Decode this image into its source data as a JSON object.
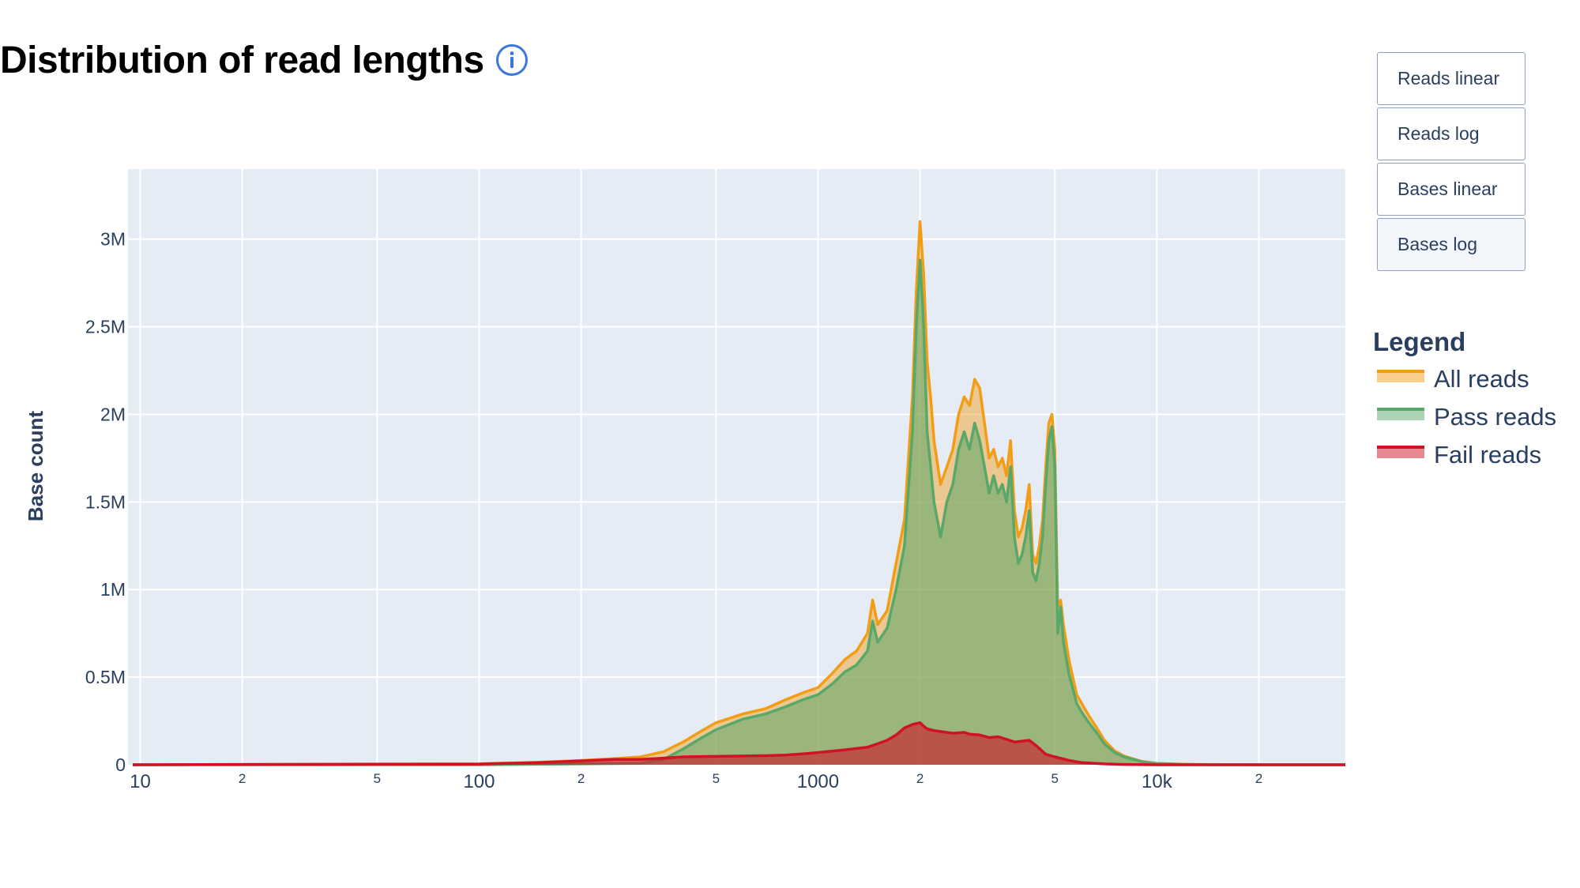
{
  "title": "Distribution of read lengths",
  "buttons": [
    "Reads linear",
    "Reads log",
    "Bases linear",
    "Bases log"
  ],
  "active_button": "Bases log",
  "legend_title": "Legend",
  "colors": {
    "all": "#f29d16",
    "pass": "#59a869",
    "fail": "#cf1327",
    "info": "#3a78d8",
    "plot_bg": "#e5ecf6",
    "grid": "#ffffff"
  },
  "chart_data": {
    "type": "area",
    "title": "Distribution of read lengths",
    "xlabel": "",
    "ylabel": "Base count",
    "x_scale": "log",
    "xlim": [
      9.2,
      36000
    ],
    "ylim": [
      0,
      3400000
    ],
    "grid": true,
    "legend_position": "right",
    "x_major_ticks": [
      {
        "v": 10,
        "label": "10"
      },
      {
        "v": 100,
        "label": "100"
      },
      {
        "v": 1000,
        "label": "1000"
      },
      {
        "v": 10000,
        "label": "10k"
      }
    ],
    "x_minor_ticks": [
      {
        "v": 20,
        "label": "2"
      },
      {
        "v": 50,
        "label": "5"
      },
      {
        "v": 200,
        "label": "2"
      },
      {
        "v": 500,
        "label": "5"
      },
      {
        "v": 2000,
        "label": "2"
      },
      {
        "v": 5000,
        "label": "5"
      },
      {
        "v": 20000,
        "label": "2"
      }
    ],
    "y_ticks": [
      {
        "v": 0,
        "label": "0"
      },
      {
        "v": 500000,
        "label": "0.5M"
      },
      {
        "v": 1000000,
        "label": "1M"
      },
      {
        "v": 1500000,
        "label": "1.5M"
      },
      {
        "v": 2000000,
        "label": "2M"
      },
      {
        "v": 2500000,
        "label": "2.5M"
      },
      {
        "v": 3000000,
        "label": "3M"
      }
    ],
    "series": [
      {
        "name": "All reads",
        "key": "all",
        "points": [
          [
            9.5,
            0
          ],
          [
            20,
            2000
          ],
          [
            50,
            4000
          ],
          [
            100,
            6000
          ],
          [
            150,
            15000
          ],
          [
            200,
            25000
          ],
          [
            250,
            35000
          ],
          [
            300,
            45000
          ],
          [
            350,
            75000
          ],
          [
            400,
            130000
          ],
          [
            450,
            190000
          ],
          [
            500,
            240000
          ],
          [
            600,
            290000
          ],
          [
            700,
            320000
          ],
          [
            800,
            370000
          ],
          [
            900,
            410000
          ],
          [
            1000,
            440000
          ],
          [
            1100,
            520000
          ],
          [
            1200,
            600000
          ],
          [
            1300,
            650000
          ],
          [
            1400,
            750000
          ],
          [
            1450,
            940000
          ],
          [
            1500,
            800000
          ],
          [
            1600,
            880000
          ],
          [
            1700,
            1150000
          ],
          [
            1800,
            1400000
          ],
          [
            1900,
            2100000
          ],
          [
            1950,
            2700000
          ],
          [
            2000,
            3100000
          ],
          [
            2050,
            2800000
          ],
          [
            2100,
            2300000
          ],
          [
            2150,
            2100000
          ],
          [
            2200,
            1850000
          ],
          [
            2300,
            1600000
          ],
          [
            2400,
            1700000
          ],
          [
            2500,
            1800000
          ],
          [
            2600,
            2000000
          ],
          [
            2700,
            2100000
          ],
          [
            2800,
            2050000
          ],
          [
            2900,
            2200000
          ],
          [
            3000,
            2150000
          ],
          [
            3100,
            1950000
          ],
          [
            3200,
            1750000
          ],
          [
            3300,
            1800000
          ],
          [
            3400,
            1700000
          ],
          [
            3500,
            1750000
          ],
          [
            3600,
            1650000
          ],
          [
            3700,
            1850000
          ],
          [
            3800,
            1450000
          ],
          [
            3900,
            1300000
          ],
          [
            4000,
            1350000
          ],
          [
            4100,
            1450000
          ],
          [
            4200,
            1600000
          ],
          [
            4300,
            1200000
          ],
          [
            4400,
            1150000
          ],
          [
            4500,
            1250000
          ],
          [
            4600,
            1400000
          ],
          [
            4700,
            1700000
          ],
          [
            4800,
            1950000
          ],
          [
            4900,
            2000000
          ],
          [
            5000,
            1800000
          ],
          [
            5100,
            900000
          ],
          [
            5200,
            940000
          ],
          [
            5300,
            800000
          ],
          [
            5500,
            600000
          ],
          [
            5800,
            400000
          ],
          [
            6000,
            350000
          ],
          [
            6300,
            280000
          ],
          [
            6600,
            220000
          ],
          [
            7000,
            140000
          ],
          [
            7500,
            80000
          ],
          [
            8000,
            50000
          ],
          [
            9000,
            20000
          ],
          [
            10000,
            8000
          ],
          [
            12000,
            3000
          ],
          [
            15000,
            1000
          ],
          [
            20000,
            0
          ],
          [
            36000,
            0
          ]
        ]
      },
      {
        "name": "Pass reads",
        "key": "pass",
        "points": [
          [
            9.5,
            0
          ],
          [
            50,
            0
          ],
          [
            100,
            0
          ],
          [
            200,
            5000
          ],
          [
            300,
            8000
          ],
          [
            350,
            30000
          ],
          [
            400,
            90000
          ],
          [
            450,
            150000
          ],
          [
            500,
            200000
          ],
          [
            600,
            260000
          ],
          [
            700,
            290000
          ],
          [
            800,
            330000
          ],
          [
            900,
            370000
          ],
          [
            1000,
            400000
          ],
          [
            1100,
            460000
          ],
          [
            1200,
            530000
          ],
          [
            1300,
            570000
          ],
          [
            1400,
            650000
          ],
          [
            1450,
            820000
          ],
          [
            1500,
            700000
          ],
          [
            1600,
            780000
          ],
          [
            1700,
            1000000
          ],
          [
            1800,
            1250000
          ],
          [
            1900,
            1900000
          ],
          [
            1950,
            2500000
          ],
          [
            2000,
            2880000
          ],
          [
            2050,
            2500000
          ],
          [
            2100,
            1900000
          ],
          [
            2150,
            1700000
          ],
          [
            2200,
            1500000
          ],
          [
            2300,
            1300000
          ],
          [
            2400,
            1500000
          ],
          [
            2500,
            1600000
          ],
          [
            2600,
            1800000
          ],
          [
            2700,
            1900000
          ],
          [
            2800,
            1800000
          ],
          [
            2900,
            1950000
          ],
          [
            3000,
            1850000
          ],
          [
            3100,
            1700000
          ],
          [
            3200,
            1550000
          ],
          [
            3300,
            1650000
          ],
          [
            3400,
            1550000
          ],
          [
            3500,
            1600000
          ],
          [
            3600,
            1500000
          ],
          [
            3700,
            1700000
          ],
          [
            3800,
            1300000
          ],
          [
            3900,
            1150000
          ],
          [
            4000,
            1200000
          ],
          [
            4100,
            1300000
          ],
          [
            4200,
            1450000
          ],
          [
            4300,
            1100000
          ],
          [
            4400,
            1050000
          ],
          [
            4500,
            1150000
          ],
          [
            4600,
            1300000
          ],
          [
            4700,
            1600000
          ],
          [
            4800,
            1850000
          ],
          [
            4900,
            1930000
          ],
          [
            5000,
            1700000
          ],
          [
            5100,
            750000
          ],
          [
            5200,
            900000
          ],
          [
            5300,
            700000
          ],
          [
            5500,
            520000
          ],
          [
            5800,
            350000
          ],
          [
            6000,
            300000
          ],
          [
            6300,
            240000
          ],
          [
            6600,
            190000
          ],
          [
            7000,
            120000
          ],
          [
            7500,
            70000
          ],
          [
            8000,
            45000
          ],
          [
            9000,
            18000
          ],
          [
            10000,
            7000
          ],
          [
            12000,
            2000
          ],
          [
            15000,
            0
          ],
          [
            36000,
            0
          ]
        ]
      },
      {
        "name": "Fail reads",
        "key": "fail",
        "points": [
          [
            9.5,
            0
          ],
          [
            20,
            2000
          ],
          [
            50,
            3000
          ],
          [
            100,
            4000
          ],
          [
            150,
            12000
          ],
          [
            200,
            22000
          ],
          [
            250,
            30000
          ],
          [
            300,
            30000
          ],
          [
            350,
            38000
          ],
          [
            400,
            45000
          ],
          [
            500,
            48000
          ],
          [
            600,
            50000
          ],
          [
            700,
            52000
          ],
          [
            800,
            55000
          ],
          [
            900,
            62000
          ],
          [
            1000,
            70000
          ],
          [
            1200,
            85000
          ],
          [
            1400,
            100000
          ],
          [
            1500,
            120000
          ],
          [
            1600,
            140000
          ],
          [
            1700,
            170000
          ],
          [
            1800,
            210000
          ],
          [
            1900,
            230000
          ],
          [
            2000,
            240000
          ],
          [
            2050,
            220000
          ],
          [
            2100,
            205000
          ],
          [
            2200,
            195000
          ],
          [
            2300,
            190000
          ],
          [
            2500,
            180000
          ],
          [
            2700,
            185000
          ],
          [
            2800,
            175000
          ],
          [
            3000,
            170000
          ],
          [
            3200,
            155000
          ],
          [
            3400,
            160000
          ],
          [
            3600,
            145000
          ],
          [
            3800,
            130000
          ],
          [
            4000,
            135000
          ],
          [
            4200,
            140000
          ],
          [
            4400,
            110000
          ],
          [
            4700,
            60000
          ],
          [
            5000,
            45000
          ],
          [
            5500,
            25000
          ],
          [
            6000,
            12000
          ],
          [
            7000,
            5000
          ],
          [
            8000,
            2000
          ],
          [
            10000,
            0
          ],
          [
            36000,
            0
          ]
        ]
      }
    ]
  }
}
